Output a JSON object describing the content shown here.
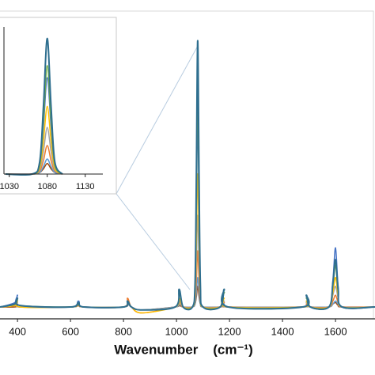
{
  "chart_data": {
    "type": "line",
    "xlabel": "Wavenumber    (cm⁻¹)",
    "x": [
      334,
      390,
      400,
      410,
      600,
      630,
      650,
      800,
      815,
      830,
      870,
      995,
      1010,
      1025,
      1060,
      1070,
      1075,
      1080,
      1085,
      1090,
      1100,
      1165,
      1180,
      1195,
      1475,
      1490,
      1505,
      1575,
      1590,
      1600,
      1610,
      1625,
      1749
    ],
    "series": [
      {
        "color": "#2f6f8f",
        "values": [
          0,
          1,
          3,
          0.5,
          0,
          1.5,
          0,
          0,
          2,
          0,
          -1,
          0,
          6,
          0,
          0,
          8,
          45,
          90,
          45,
          8,
          0,
          0,
          6,
          0,
          0,
          4,
          0,
          0,
          8,
          16,
          6,
          0,
          0
        ]
      },
      {
        "color": "#70ad47",
        "values": [
          0,
          1,
          2.5,
          0.5,
          0,
          1,
          0,
          0,
          2,
          0,
          -1,
          0,
          5,
          0,
          0,
          6,
          36,
          72,
          36,
          6,
          0,
          0,
          5,
          0,
          0,
          3,
          0,
          0,
          7,
          14,
          5,
          0,
          0
        ]
      },
      {
        "color": "#4472c4",
        "values": [
          0,
          1.5,
          4,
          0.5,
          0,
          2,
          0,
          0,
          1.5,
          0,
          -1,
          0,
          5,
          0,
          0,
          6,
          32,
          64,
          32,
          6,
          0,
          0,
          5,
          0,
          0,
          3.5,
          0,
          0,
          9,
          20,
          7,
          0,
          0
        ]
      },
      {
        "color": "#ffc000",
        "values": [
          0,
          0.5,
          2,
          0,
          0,
          1,
          0,
          0,
          1.5,
          0,
          -2,
          0,
          3,
          0,
          0,
          4,
          22,
          45,
          22,
          4,
          0,
          0,
          3,
          0,
          0,
          2,
          0,
          0,
          5,
          10,
          4,
          0,
          0
        ]
      },
      {
        "color": "#a5a5a5",
        "values": [
          0,
          0.5,
          1.5,
          0,
          0,
          1,
          0,
          0,
          1,
          0,
          -1,
          0,
          2,
          0,
          0,
          3,
          15,
          31,
          15,
          3,
          0,
          0,
          2,
          0,
          0,
          1.5,
          0,
          0,
          4,
          7,
          3,
          0,
          0
        ]
      },
      {
        "color": "#ed7d31",
        "values": [
          0,
          0.5,
          1,
          0,
          0,
          0.5,
          0,
          0,
          3,
          0,
          -2,
          0,
          1.5,
          0,
          0,
          2,
          9,
          19,
          9,
          2,
          0,
          0,
          1.5,
          0,
          0,
          1,
          0,
          0,
          2,
          4,
          1.5,
          0,
          0
        ]
      },
      {
        "color": "#5b9bd5",
        "values": [
          0,
          0.5,
          1,
          0,
          0,
          0.5,
          0,
          0,
          1,
          0,
          -1,
          0,
          1,
          0,
          0,
          1,
          5,
          10,
          5,
          1,
          0,
          0,
          1,
          0,
          0,
          0.5,
          0,
          0,
          1,
          2,
          1,
          0,
          0
        ]
      },
      {
        "color": "#9e480e",
        "values": [
          0,
          0,
          0.5,
          0,
          0,
          0.5,
          0,
          0,
          1,
          0,
          -1,
          0,
          0.5,
          0,
          0,
          1,
          3.5,
          7,
          3.5,
          1,
          0,
          0,
          0.5,
          0,
          0,
          0.5,
          0,
          0,
          1,
          1.5,
          0.5,
          0,
          0
        ]
      }
    ],
    "xlim": [
      334,
      1749
    ],
    "ylim": [
      -4,
      100
    ],
    "xticks": [
      400,
      600,
      800,
      1000,
      1200,
      1400,
      1600
    ],
    "inset": {
      "xlim": [
        1023,
        1148
      ],
      "ylim": [
        0,
        104
      ],
      "xticks": [
        1030,
        1080,
        1130
      ]
    }
  }
}
